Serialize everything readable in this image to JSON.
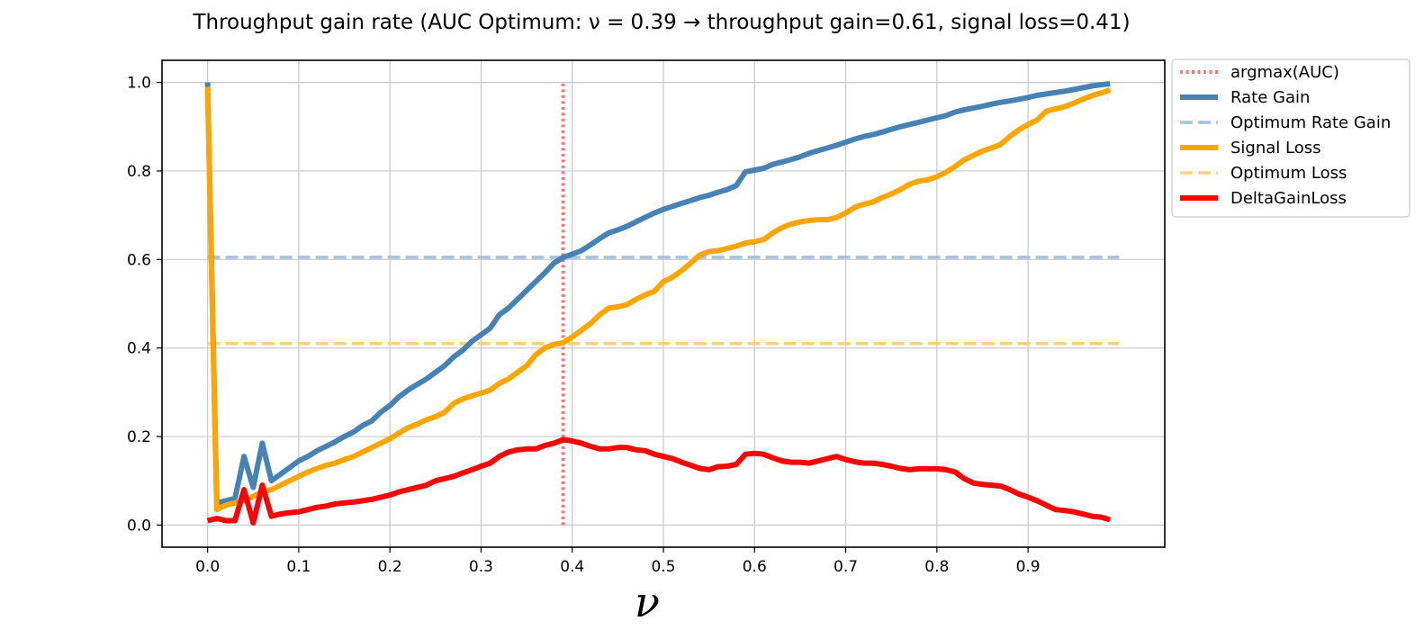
{
  "chart_data": {
    "type": "line",
    "title": "Throughput gain rate (AUC Optimum: ν = 0.39 → throughput gain=0.61, signal loss=0.41)",
    "xlabel": "ν",
    "ylabel": "",
    "xlim": [
      -0.05,
      1.05
    ],
    "ylim": [
      -0.05,
      1.05
    ],
    "xticks": [
      0.0,
      0.1,
      0.2,
      0.3,
      0.4,
      0.5,
      0.6,
      0.7,
      0.8,
      0.9
    ],
    "xtick_labels": [
      "0.0",
      "0.1",
      "0.2",
      "0.3",
      "0.4",
      "0.5",
      "0.6",
      "0.7",
      "0.8",
      "0.9"
    ],
    "yticks": [
      0.0,
      0.2,
      0.4,
      0.6,
      0.8,
      1.0
    ],
    "ytick_labels": [
      "0.0",
      "0.2",
      "0.4",
      "0.6",
      "0.8",
      "1.0"
    ],
    "grid": true,
    "legend_position": "outside-top-right",
    "argmax": {
      "name": "argmax(AUC)",
      "x": 0.39,
      "y_range": [
        0.0,
        1.0
      ],
      "color": "#f07878"
    },
    "optimum_gain": {
      "name": "Optimum Rate Gain",
      "value": 0.605,
      "x_range": [
        0.0,
        1.0
      ],
      "color": "#a6c1da"
    },
    "optimum_loss": {
      "name": "Optimum Loss",
      "value": 0.41,
      "x_range": [
        0.0,
        1.0
      ],
      "color": "#fbd084"
    },
    "x": [
      0.0,
      0.01,
      0.02,
      0.03,
      0.04,
      0.05,
      0.06,
      0.07,
      0.08,
      0.09,
      0.1,
      0.11,
      0.12,
      0.13,
      0.14,
      0.15,
      0.16,
      0.17,
      0.18,
      0.19,
      0.2,
      0.21,
      0.22,
      0.23,
      0.24,
      0.25,
      0.26,
      0.27,
      0.28,
      0.29,
      0.3,
      0.31,
      0.32,
      0.33,
      0.34,
      0.35,
      0.36,
      0.37,
      0.38,
      0.39,
      0.4,
      0.41,
      0.42,
      0.43,
      0.44,
      0.45,
      0.46,
      0.47,
      0.48,
      0.49,
      0.5,
      0.51,
      0.52,
      0.53,
      0.54,
      0.55,
      0.56,
      0.57,
      0.58,
      0.59,
      0.6,
      0.61,
      0.62,
      0.63,
      0.64,
      0.65,
      0.66,
      0.67,
      0.68,
      0.69,
      0.7,
      0.71,
      0.72,
      0.73,
      0.74,
      0.75,
      0.76,
      0.77,
      0.78,
      0.79,
      0.8,
      0.81,
      0.82,
      0.83,
      0.84,
      0.85,
      0.86,
      0.87,
      0.88,
      0.89,
      0.9,
      0.91,
      0.92,
      0.93,
      0.94,
      0.95,
      0.96,
      0.97,
      0.98,
      0.99
    ],
    "series": [
      {
        "name": "Rate Gain",
        "color": "#4682b4",
        "values": [
          1.0,
          0.05,
          0.055,
          0.06,
          0.155,
          0.085,
          0.185,
          0.1,
          0.115,
          0.13,
          0.145,
          0.155,
          0.168,
          0.178,
          0.188,
          0.2,
          0.21,
          0.225,
          0.235,
          0.255,
          0.27,
          0.29,
          0.305,
          0.318,
          0.33,
          0.345,
          0.36,
          0.38,
          0.395,
          0.415,
          0.43,
          0.445,
          0.475,
          0.49,
          0.51,
          0.53,
          0.55,
          0.57,
          0.592,
          0.605,
          0.612,
          0.62,
          0.633,
          0.647,
          0.66,
          0.667,
          0.675,
          0.685,
          0.695,
          0.705,
          0.713,
          0.72,
          0.727,
          0.733,
          0.74,
          0.745,
          0.752,
          0.758,
          0.767,
          0.798,
          0.802,
          0.806,
          0.815,
          0.82,
          0.826,
          0.832,
          0.84,
          0.846,
          0.852,
          0.858,
          0.865,
          0.872,
          0.878,
          0.882,
          0.888,
          0.894,
          0.9,
          0.905,
          0.91,
          0.915,
          0.92,
          0.925,
          0.933,
          0.938,
          0.942,
          0.946,
          0.951,
          0.955,
          0.958,
          0.962,
          0.966,
          0.971,
          0.974,
          0.977,
          0.98,
          0.984,
          0.988,
          0.992,
          0.995,
          0.997
        ]
      },
      {
        "name": "Signal Loss",
        "color": "#ffa500",
        "values": [
          0.99,
          0.035,
          0.045,
          0.05,
          0.055,
          0.065,
          0.075,
          0.08,
          0.09,
          0.1,
          0.11,
          0.12,
          0.128,
          0.135,
          0.14,
          0.148,
          0.155,
          0.165,
          0.175,
          0.185,
          0.195,
          0.208,
          0.22,
          0.228,
          0.238,
          0.245,
          0.255,
          0.275,
          0.285,
          0.292,
          0.298,
          0.305,
          0.32,
          0.33,
          0.345,
          0.36,
          0.385,
          0.4,
          0.408,
          0.412,
          0.425,
          0.44,
          0.455,
          0.475,
          0.49,
          0.493,
          0.498,
          0.51,
          0.52,
          0.528,
          0.55,
          0.56,
          0.575,
          0.592,
          0.61,
          0.618,
          0.62,
          0.625,
          0.63,
          0.637,
          0.64,
          0.645,
          0.66,
          0.672,
          0.68,
          0.685,
          0.688,
          0.69,
          0.69,
          0.695,
          0.705,
          0.718,
          0.725,
          0.73,
          0.74,
          0.748,
          0.758,
          0.77,
          0.777,
          0.78,
          0.787,
          0.797,
          0.81,
          0.825,
          0.835,
          0.845,
          0.852,
          0.86,
          0.878,
          0.893,
          0.905,
          0.915,
          0.935,
          0.94,
          0.945,
          0.953,
          0.962,
          0.97,
          0.976,
          0.983
        ]
      },
      {
        "name": "DeltaGainLoss",
        "color": "#ff0000",
        "values": [
          0.01,
          0.015,
          0.01,
          0.01,
          0.08,
          0.005,
          0.09,
          0.02,
          0.025,
          0.028,
          0.03,
          0.035,
          0.04,
          0.043,
          0.048,
          0.05,
          0.052,
          0.055,
          0.058,
          0.063,
          0.068,
          0.075,
          0.08,
          0.085,
          0.09,
          0.1,
          0.105,
          0.11,
          0.118,
          0.125,
          0.133,
          0.14,
          0.155,
          0.165,
          0.17,
          0.172,
          0.172,
          0.18,
          0.185,
          0.193,
          0.19,
          0.185,
          0.178,
          0.172,
          0.172,
          0.175,
          0.175,
          0.17,
          0.168,
          0.16,
          0.155,
          0.15,
          0.142,
          0.135,
          0.128,
          0.125,
          0.132,
          0.133,
          0.137,
          0.16,
          0.162,
          0.16,
          0.152,
          0.145,
          0.142,
          0.142,
          0.14,
          0.145,
          0.15,
          0.155,
          0.148,
          0.143,
          0.14,
          0.14,
          0.137,
          0.133,
          0.128,
          0.125,
          0.127,
          0.127,
          0.127,
          0.125,
          0.12,
          0.105,
          0.095,
          0.092,
          0.09,
          0.088,
          0.08,
          0.07,
          0.063,
          0.055,
          0.045,
          0.035,
          0.033,
          0.03,
          0.025,
          0.02,
          0.018,
          0.012
        ]
      }
    ],
    "legend": [
      {
        "label": "argmax(AUC)",
        "style": "dotted",
        "color": "#f07878"
      },
      {
        "label": "Rate Gain",
        "style": "solid",
        "color": "#4682b4"
      },
      {
        "label": "Optimum Rate Gain",
        "style": "dashed",
        "color": "#a6c1da"
      },
      {
        "label": "Signal Loss",
        "style": "solid",
        "color": "#ffa500"
      },
      {
        "label": "Optimum Loss",
        "style": "dashed",
        "color": "#fbd084"
      },
      {
        "label": "DeltaGainLoss",
        "style": "solid",
        "color": "#ff0000"
      }
    ]
  }
}
